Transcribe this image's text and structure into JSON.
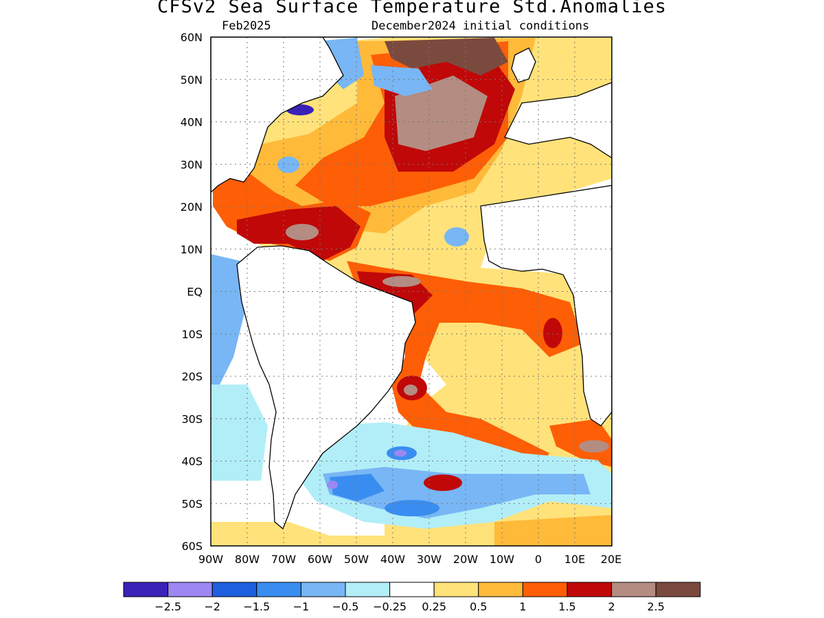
{
  "title": "CFSv2 Sea Surface Temperature Std.Anomalies",
  "valid_month": "Feb2025",
  "init_conditions": "December2024 initial conditions",
  "y_ticks": [
    "60N",
    "50N",
    "40N",
    "30N",
    "20N",
    "10N",
    "EQ",
    "10S",
    "20S",
    "30S",
    "40S",
    "50S",
    "60S"
  ],
  "x_ticks": [
    "90W",
    "80W",
    "70W",
    "60W",
    "50W",
    "40W",
    "30W",
    "20W",
    "10W",
    "0",
    "10E",
    "20E"
  ],
  "colorbar": {
    "colors": [
      "#3a22b8",
      "#9d87f0",
      "#1e5fe0",
      "#3a8df0",
      "#78b6f5",
      "#b2eef8",
      "#ffffff",
      "#ffe27a",
      "#ffba3a",
      "#fe5e06",
      "#c00808",
      "#b48c82",
      "#7b4a3e"
    ],
    "labels": [
      "−2.5",
      "−2",
      "−1.5",
      "−1",
      "−0.5",
      "−0.25",
      "0.25",
      "0.5",
      "1",
      "1.5",
      "2",
      "2.5"
    ]
  },
  "map": {
    "lon_range": [
      -90,
      20
    ],
    "lat_range": [
      -60,
      60
    ],
    "grid": "dotted every 10 degrees",
    "land_color": "#ffffff",
    "coastline_color": "#000000"
  }
}
